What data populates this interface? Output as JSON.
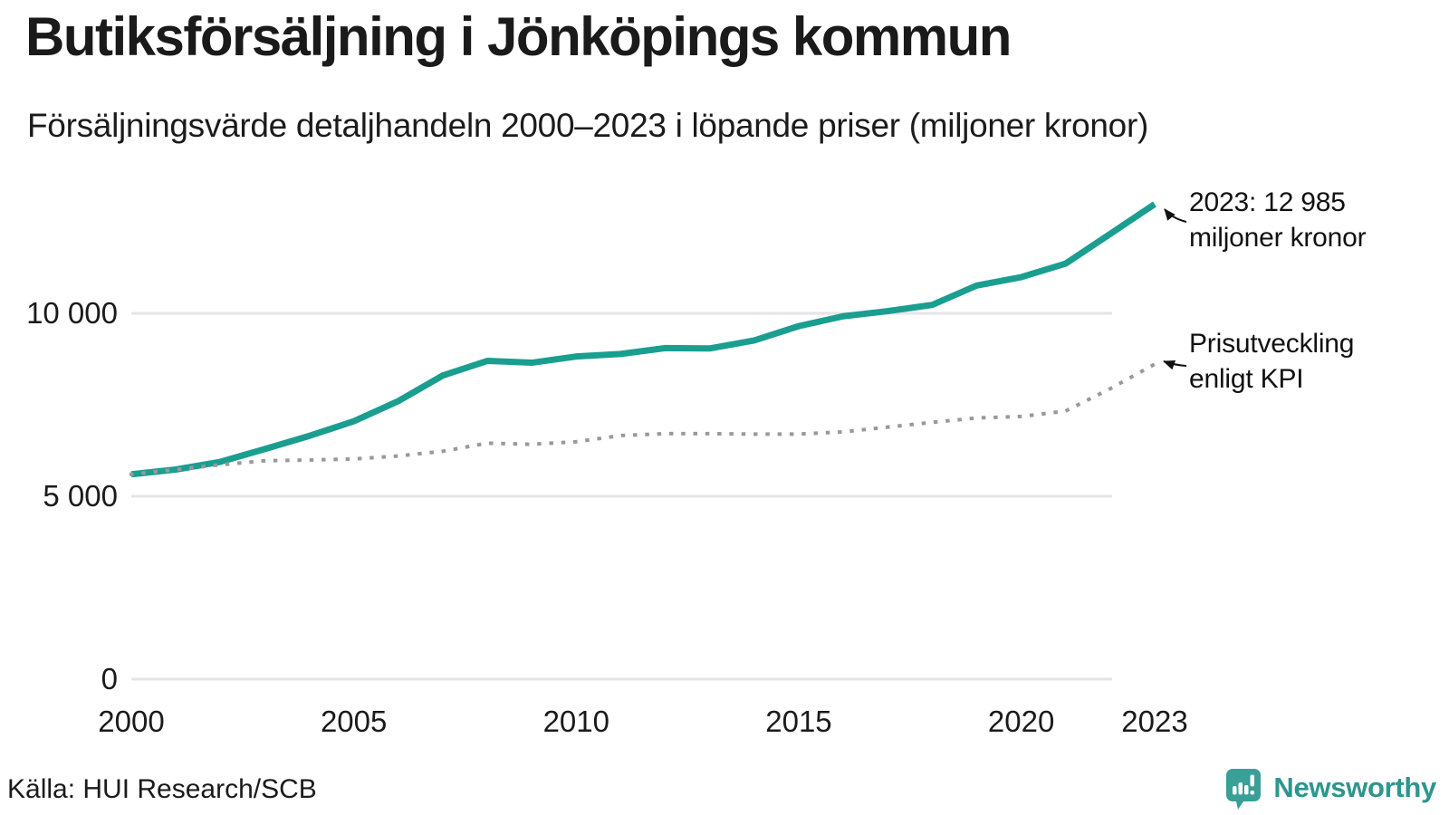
{
  "header": {
    "title": "Butiksförsäljning i Jönköpings kommun",
    "subtitle": "Försäljningsvärde detaljhandeln 2000–2023 i löpande priser (miljoner kronor)"
  },
  "annotations": {
    "latest": {
      "line1": "2023: 12 985",
      "line2": "miljoner kronor"
    },
    "kpi": {
      "line1": "Prisutveckling",
      "line2": "enligt KPI"
    }
  },
  "footer": {
    "source": "Källa: HUI Research/SCB",
    "brand": "Newsworthy"
  },
  "colors": {
    "sales_line": "#1a9e90",
    "kpi_line": "#999999",
    "gridline": "#e4e4e8",
    "text": "#1a1a1a",
    "brand_teal": "#2e968e",
    "brand_icon": "#3a9f96"
  },
  "chart_data": {
    "type": "line",
    "title": "Butiksförsäljning i Jönköpings kommun",
    "subtitle": "Försäljningsvärde detaljhandeln 2000–2023 i löpande priser (miljoner kronor)",
    "xlabel": "",
    "ylabel": "miljoner kronor",
    "xlim": [
      2000,
      2023
    ],
    "ylim": [
      0,
      13500
    ],
    "grid": "horizontal",
    "legend_position": "annotated-inline",
    "x": [
      2000,
      2001,
      2002,
      2003,
      2004,
      2005,
      2006,
      2007,
      2008,
      2009,
      2010,
      2011,
      2012,
      2013,
      2014,
      2015,
      2016,
      2017,
      2018,
      2019,
      2020,
      2021,
      2022,
      2023
    ],
    "series": [
      {
        "name": "Försäljningsvärde detaljhandeln (löpande priser)",
        "style": "solid",
        "color": "#1a9e90",
        "values": [
          5600,
          5730,
          5940,
          6290,
          6650,
          7050,
          7600,
          8300,
          8700,
          8650,
          8820,
          8890,
          9050,
          9040,
          9260,
          9650,
          9920,
          10060,
          10230,
          10760,
          10990,
          11360,
          12170,
          12985
        ]
      },
      {
        "name": "Prisutveckling enligt KPI",
        "style": "dotted",
        "color": "#999999",
        "values": [
          5600,
          5730,
          5860,
          5970,
          5990,
          6020,
          6100,
          6230,
          6450,
          6420,
          6490,
          6660,
          6710,
          6710,
          6700,
          6700,
          6760,
          6890,
          7020,
          7140,
          7180,
          7330,
          7940,
          8610
        ]
      }
    ],
    "yticks": [
      {
        "value": 0,
        "label": "0"
      },
      {
        "value": 5000,
        "label": "5 000"
      },
      {
        "value": 10000,
        "label": "10 000"
      }
    ],
    "xticks": [
      {
        "value": 2000,
        "label": "2000"
      },
      {
        "value": 2005,
        "label": "2005"
      },
      {
        "value": 2010,
        "label": "2010"
      },
      {
        "value": 2015,
        "label": "2015"
      },
      {
        "value": 2020,
        "label": "2020"
      },
      {
        "value": 2023,
        "label": "2023"
      }
    ],
    "annotations": [
      {
        "text": "2023: 12 985 miljoner kronor",
        "series": 0,
        "x": 2023,
        "y": 12985
      },
      {
        "text": "Prisutveckling enligt KPI",
        "series": 1,
        "x": 2023,
        "y": 8610
      }
    ]
  }
}
